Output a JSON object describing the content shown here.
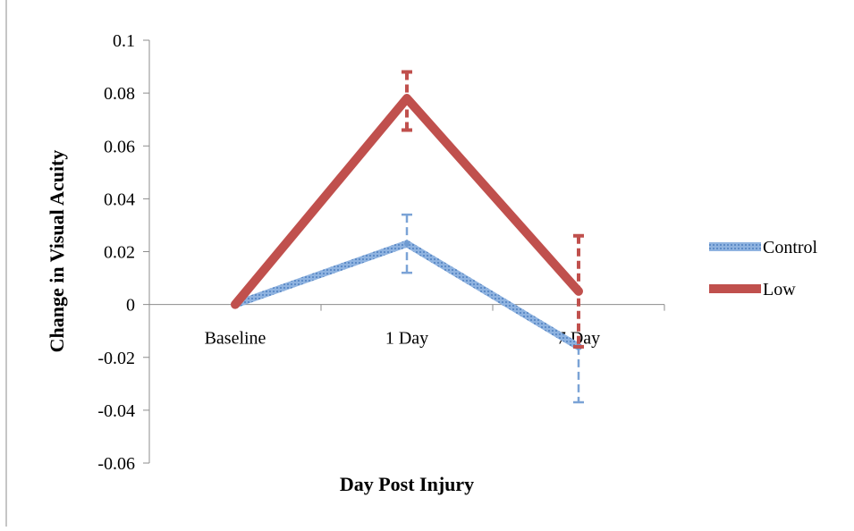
{
  "chart_data": {
    "type": "line",
    "title": "",
    "xlabel": "Day Post Injury",
    "ylabel": "Change in Visual Acuity",
    "categories": [
      "Baseline",
      "1 Day",
      "7 Day"
    ],
    "ylim": [
      -0.06,
      0.1
    ],
    "yticks": [
      "0.1",
      "0.08",
      "0.06",
      "0.04",
      "0.02",
      "0",
      "-0.02",
      "-0.04",
      "-0.06"
    ],
    "grid": false,
    "legend_position": "right",
    "series": [
      {
        "name": "Control",
        "values": [
          0,
          0.023,
          -0.016
        ],
        "error_upper": [
          null,
          0.034,
          -0.016
        ],
        "error_lower": [
          null,
          0.012,
          -0.037
        ],
        "color": "#6f9bd1",
        "style": "textured"
      },
      {
        "name": "Low",
        "values": [
          0,
          0.078,
          0.005
        ],
        "error_upper": [
          null,
          0.088,
          0.026
        ],
        "error_lower": [
          null,
          0.066,
          -0.016
        ],
        "color": "#c0504d",
        "style": "solid"
      }
    ]
  }
}
